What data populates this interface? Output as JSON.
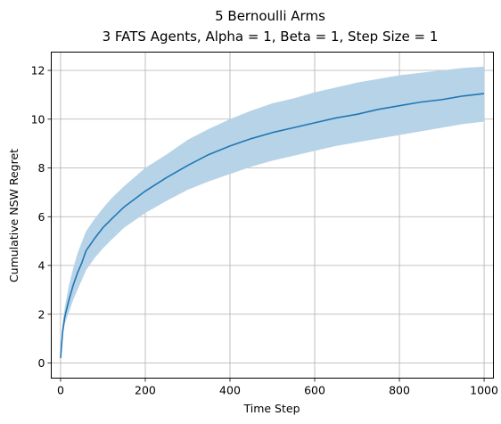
{
  "chart_data": {
    "type": "line",
    "title": "5 Bernoulli Arms",
    "subtitle": "3 FATS Agents, Alpha = 1, Beta = 1, Step Size = 1",
    "xlabel": "Time Step",
    "ylabel": "Cumulative NSW Regret",
    "xlim": [
      -22,
      1022
    ],
    "ylim": [
      -0.62,
      12.75
    ],
    "xticks": [
      0,
      200,
      400,
      600,
      800,
      1000
    ],
    "yticks": [
      0,
      2,
      4,
      6,
      8,
      10,
      12
    ],
    "grid": true,
    "series": [
      {
        "x": [
          0,
          5,
          10,
          20,
          30,
          40,
          50,
          60,
          80,
          100,
          120,
          150,
          200,
          250,
          300,
          350,
          400,
          450,
          500,
          550,
          600,
          650,
          700,
          750,
          800,
          850,
          900,
          950,
          1000
        ],
        "mean": [
          0.2,
          1.3,
          1.9,
          2.6,
          3.2,
          3.7,
          4.1,
          4.6,
          5.1,
          5.55,
          5.9,
          6.4,
          7.05,
          7.6,
          8.1,
          8.55,
          8.9,
          9.2,
          9.45,
          9.65,
          9.85,
          10.05,
          10.2,
          10.4,
          10.55,
          10.7,
          10.8,
          10.95,
          11.05
        ],
        "upper": [
          0.2,
          1.6,
          2.3,
          3.2,
          3.9,
          4.5,
          4.95,
          5.4,
          5.9,
          6.35,
          6.75,
          7.25,
          8.0,
          8.55,
          9.15,
          9.6,
          10.0,
          10.35,
          10.65,
          10.85,
          11.1,
          11.3,
          11.5,
          11.65,
          11.8,
          11.9,
          12.0,
          12.1,
          12.15
        ],
        "lower": [
          0.2,
          1.1,
          1.6,
          2.1,
          2.6,
          3.0,
          3.4,
          3.8,
          4.3,
          4.7,
          5.05,
          5.55,
          6.15,
          6.65,
          7.1,
          7.45,
          7.75,
          8.05,
          8.3,
          8.5,
          8.7,
          8.9,
          9.05,
          9.2,
          9.35,
          9.5,
          9.65,
          9.8,
          9.9
        ],
        "color": "#1f77b4",
        "band_color": "#b7d3e8"
      }
    ]
  }
}
